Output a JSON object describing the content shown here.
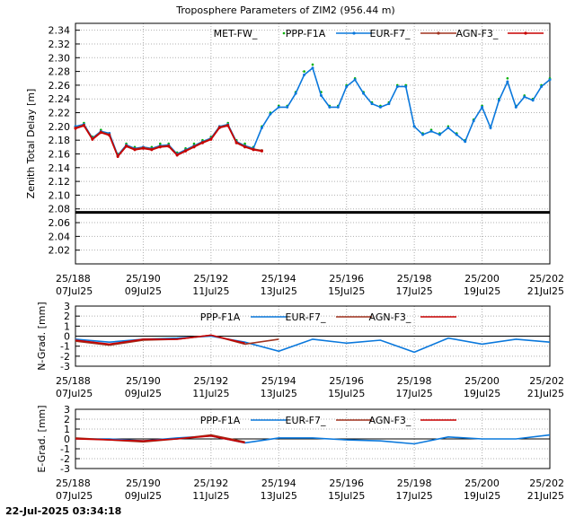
{
  "title": "Troposphere Parameters of ZIM2 (956.44 m)",
  "timestamp": "22-Jul-2025 03:34:18",
  "colors": {
    "met": "#00b000",
    "ppp": "#0a78dc",
    "eur": "#a0321e",
    "agn": "#c80000",
    "ref": "#000000"
  },
  "x_ticks": [
    {
      "doy": 188,
      "top": "25/188",
      "bottom": "07Jul25"
    },
    {
      "doy": 190,
      "top": "25/190",
      "bottom": "09Jul25"
    },
    {
      "doy": 192,
      "top": "25/192",
      "bottom": "11Jul25"
    },
    {
      "doy": 194,
      "top": "25/194",
      "bottom": "13Jul25"
    },
    {
      "doy": 196,
      "top": "25/196",
      "bottom": "15Jul25"
    },
    {
      "doy": 198,
      "top": "25/198",
      "bottom": "17Jul25"
    },
    {
      "doy": 200,
      "top": "25/200",
      "bottom": "19Jul25"
    },
    {
      "doy": 202,
      "top": "25/202",
      "bottom": "21Jul25"
    }
  ],
  "chart_data": [
    {
      "type": "line",
      "ylabel": "Zenith Total Delay [m]",
      "xlim": [
        188,
        202
      ],
      "ylim": [
        2.0,
        2.35
      ],
      "yticks": [
        "2.02",
        "2.04",
        "2.06",
        "2.08",
        "2.10",
        "2.12",
        "2.14",
        "2.16",
        "2.18",
        "2.20",
        "2.22",
        "2.24",
        "2.26",
        "2.28",
        "2.30",
        "2.32",
        "2.34"
      ],
      "grid": true,
      "legend": "top",
      "reference_line": 2.075,
      "series": [
        {
          "name": "MET-FW_",
          "style": "dots",
          "color_key": "met",
          "x": [
            188.0,
            188.25,
            188.5,
            188.75,
            189.0,
            189.25,
            189.5,
            189.75,
            190.0,
            190.25,
            190.5,
            190.75,
            191.0,
            191.25,
            191.5,
            191.75,
            192.0,
            192.25,
            192.5,
            192.75,
            193.0,
            193.25,
            193.5,
            193.75,
            194.0,
            194.25,
            194.5,
            194.75,
            195.0,
            195.25,
            195.5,
            195.75,
            196.0,
            196.25,
            196.5,
            196.75,
            197.0,
            197.25,
            197.5,
            197.75,
            198.0,
            198.25,
            198.5,
            198.75,
            199.0,
            199.25,
            199.5,
            199.75,
            200.0,
            200.25,
            200.5,
            200.75,
            201.0,
            201.25,
            201.5,
            201.75,
            202.0
          ],
          "y": [
            2.2,
            2.205,
            2.185,
            2.195,
            2.19,
            2.16,
            2.175,
            2.17,
            2.17,
            2.17,
            2.175,
            2.175,
            2.162,
            2.168,
            2.175,
            2.18,
            2.185,
            2.2,
            2.205,
            2.18,
            2.175,
            2.17,
            2.2,
            2.22,
            2.23,
            2.23,
            2.25,
            2.28,
            2.29,
            2.25,
            2.23,
            2.23,
            2.26,
            2.27,
            2.25,
            2.235,
            2.23,
            2.235,
            2.26,
            2.26,
            2.2,
            2.19,
            2.195,
            2.19,
            2.2,
            2.19,
            2.18,
            2.21,
            2.23,
            2.2,
            2.24,
            2.27,
            2.23,
            2.245,
            2.24,
            2.26,
            2.27
          ]
        },
        {
          "name": "PPP-F1A",
          "style": "line",
          "color_key": "ppp",
          "x": [
            188.0,
            188.25,
            188.5,
            188.75,
            189.0,
            189.25,
            189.5,
            189.75,
            190.0,
            190.25,
            190.5,
            190.75,
            191.0,
            191.25,
            191.5,
            191.75,
            192.0,
            192.25,
            192.5,
            192.75,
            193.0,
            193.25,
            193.5,
            193.75,
            194.0,
            194.25,
            194.5,
            194.75,
            195.0,
            195.25,
            195.5,
            195.75,
            196.0,
            196.25,
            196.5,
            196.75,
            197.0,
            197.25,
            197.5,
            197.75,
            198.0,
            198.25,
            198.5,
            198.75,
            199.0,
            199.25,
            199.5,
            199.75,
            200.0,
            200.25,
            200.5,
            200.75,
            201.0,
            201.25,
            201.5,
            201.75,
            202.0
          ],
          "y": [
            2.2,
            2.203,
            2.183,
            2.193,
            2.19,
            2.158,
            2.173,
            2.168,
            2.17,
            2.168,
            2.172,
            2.173,
            2.16,
            2.166,
            2.172,
            2.178,
            2.183,
            2.2,
            2.203,
            2.178,
            2.172,
            2.168,
            2.198,
            2.218,
            2.228,
            2.228,
            2.248,
            2.275,
            2.285,
            2.245,
            2.228,
            2.228,
            2.258,
            2.268,
            2.248,
            2.233,
            2.228,
            2.233,
            2.258,
            2.258,
            2.2,
            2.188,
            2.193,
            2.188,
            2.198,
            2.188,
            2.178,
            2.208,
            2.228,
            2.198,
            2.238,
            2.265,
            2.228,
            2.243,
            2.238,
            2.258,
            2.268
          ]
        },
        {
          "name": "EUR-F7_",
          "style": "line",
          "color_key": "eur",
          "x": [
            188.0,
            188.25,
            188.5,
            188.75,
            189.0,
            189.25,
            189.5,
            189.75,
            190.0,
            190.25,
            190.5,
            190.75,
            191.0,
            191.25,
            191.5,
            191.75,
            192.0,
            192.25,
            192.5,
            192.75,
            193.0,
            193.25,
            193.5
          ],
          "y": [
            2.198,
            2.202,
            2.182,
            2.192,
            2.188,
            2.157,
            2.172,
            2.167,
            2.169,
            2.167,
            2.171,
            2.172,
            2.159,
            2.165,
            2.171,
            2.177,
            2.182,
            2.199,
            2.202,
            2.177,
            2.171,
            2.167,
            2.165
          ]
        },
        {
          "name": "AGN-F3_",
          "style": "line",
          "color_key": "agn",
          "x": [
            188.0,
            188.25,
            188.5,
            188.75,
            189.0,
            189.25,
            189.5,
            189.75,
            190.0,
            190.25,
            190.5,
            190.75,
            191.0,
            191.25,
            191.5,
            191.75,
            192.0,
            192.25,
            192.5,
            192.75,
            193.0,
            193.25,
            193.5
          ],
          "y": [
            2.197,
            2.201,
            2.181,
            2.191,
            2.187,
            2.156,
            2.171,
            2.166,
            2.168,
            2.166,
            2.17,
            2.171,
            2.158,
            2.164,
            2.17,
            2.176,
            2.181,
            2.198,
            2.201,
            2.176,
            2.17,
            2.166,
            2.164
          ]
        }
      ]
    },
    {
      "type": "line",
      "ylabel": "N-Grad. [mm]",
      "xlim": [
        188,
        202
      ],
      "ylim": [
        -3,
        3
      ],
      "yticks": [
        "-3",
        "-2",
        "-1",
        "0",
        "1",
        "2",
        "3"
      ],
      "grid": true,
      "legend": "top",
      "reference_line": 0,
      "series": [
        {
          "name": "PPP-F1A",
          "color_key": "ppp",
          "x": [
            188,
            189,
            190,
            191,
            192,
            193,
            194,
            195,
            196,
            197,
            198,
            199,
            200,
            201,
            202
          ],
          "y": [
            -0.3,
            -0.6,
            -0.3,
            -0.2,
            0.0,
            -0.6,
            -1.5,
            -0.3,
            -0.7,
            -0.4,
            -1.6,
            -0.2,
            -0.8,
            -0.3,
            -0.6
          ]
        },
        {
          "name": "EUR-F7_",
          "color_key": "eur",
          "x": [
            188,
            189,
            190,
            191,
            192,
            193,
            194
          ],
          "y": [
            -0.5,
            -0.9,
            -0.4,
            -0.3,
            0.1,
            -0.8,
            -0.3
          ]
        },
        {
          "name": "AGN-F3_",
          "color_key": "agn",
          "x": [
            188,
            189,
            190,
            191,
            192,
            193
          ],
          "y": [
            -0.4,
            -0.8,
            -0.3,
            -0.3,
            0.1,
            -0.7
          ]
        }
      ]
    },
    {
      "type": "line",
      "ylabel": "E-Grad. [mm]",
      "xlim": [
        188,
        202
      ],
      "ylim": [
        -3,
        3
      ],
      "yticks": [
        "-3",
        "-2",
        "-1",
        "0",
        "1",
        "2",
        "3"
      ],
      "grid": true,
      "legend": "top",
      "reference_line": 0,
      "series": [
        {
          "name": "PPP-F1A",
          "color_key": "ppp",
          "x": [
            188,
            189,
            190,
            191,
            192,
            193,
            194,
            195,
            196,
            197,
            198,
            199,
            200,
            201,
            202
          ],
          "y": [
            0.0,
            0.0,
            -0.2,
            0.1,
            0.3,
            -0.4,
            0.1,
            0.1,
            -0.1,
            -0.2,
            -0.5,
            0.2,
            0.0,
            0.0,
            0.4
          ]
        },
        {
          "name": "EUR-F7_",
          "color_key": "eur",
          "x": [
            188,
            189,
            190,
            191,
            192,
            193
          ],
          "y": [
            0.1,
            -0.1,
            -0.3,
            0.0,
            0.4,
            -0.3
          ]
        },
        {
          "name": "AGN-F3_",
          "color_key": "agn",
          "x": [
            188,
            189,
            190,
            191,
            192,
            193
          ],
          "y": [
            0.0,
            -0.1,
            -0.2,
            0.0,
            0.3,
            -0.4
          ]
        }
      ]
    }
  ]
}
